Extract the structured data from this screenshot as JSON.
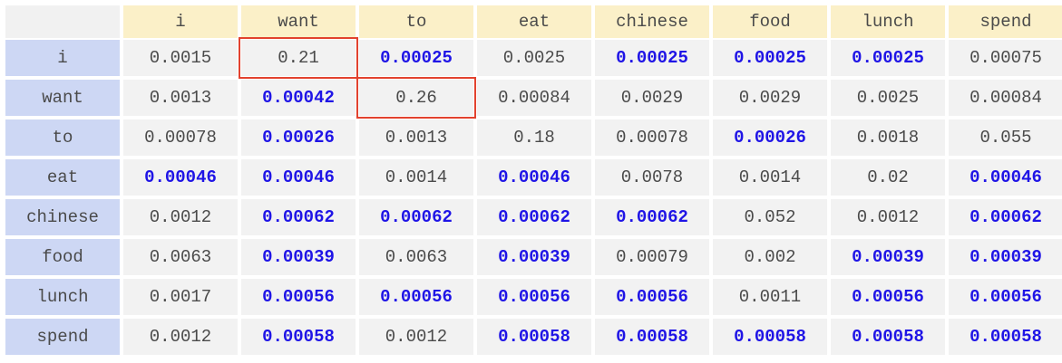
{
  "columns": [
    "i",
    "want",
    "to",
    "eat",
    "chinese",
    "food",
    "lunch",
    "spend"
  ],
  "rows": [
    {
      "label": "i",
      "cells": [
        {
          "v": "0.0015",
          "hl": false
        },
        {
          "v": "0.21",
          "hl": false
        },
        {
          "v": "0.00025",
          "hl": true
        },
        {
          "v": "0.0025",
          "hl": false
        },
        {
          "v": "0.00025",
          "hl": true
        },
        {
          "v": "0.00025",
          "hl": true
        },
        {
          "v": "0.00025",
          "hl": true
        },
        {
          "v": "0.00075",
          "hl": false
        }
      ]
    },
    {
      "label": "want",
      "cells": [
        {
          "v": "0.0013",
          "hl": false
        },
        {
          "v": "0.00042",
          "hl": true
        },
        {
          "v": "0.26",
          "hl": false
        },
        {
          "v": "0.00084",
          "hl": false
        },
        {
          "v": "0.0029",
          "hl": false
        },
        {
          "v": "0.0029",
          "hl": false
        },
        {
          "v": "0.0025",
          "hl": false
        },
        {
          "v": "0.00084",
          "hl": false
        }
      ]
    },
    {
      "label": "to",
      "cells": [
        {
          "v": "0.00078",
          "hl": false
        },
        {
          "v": "0.00026",
          "hl": true
        },
        {
          "v": "0.0013",
          "hl": false
        },
        {
          "v": "0.18",
          "hl": false
        },
        {
          "v": "0.00078",
          "hl": false
        },
        {
          "v": "0.00026",
          "hl": true
        },
        {
          "v": "0.0018",
          "hl": false
        },
        {
          "v": "0.055",
          "hl": false
        }
      ]
    },
    {
      "label": "eat",
      "cells": [
        {
          "v": "0.00046",
          "hl": true
        },
        {
          "v": "0.00046",
          "hl": true
        },
        {
          "v": "0.0014",
          "hl": false
        },
        {
          "v": "0.00046",
          "hl": true
        },
        {
          "v": "0.0078",
          "hl": false
        },
        {
          "v": "0.0014",
          "hl": false
        },
        {
          "v": "0.02",
          "hl": false
        },
        {
          "v": "0.00046",
          "hl": true
        }
      ]
    },
    {
      "label": "chinese",
      "cells": [
        {
          "v": "0.0012",
          "hl": false
        },
        {
          "v": "0.00062",
          "hl": true
        },
        {
          "v": "0.00062",
          "hl": true
        },
        {
          "v": "0.00062",
          "hl": true
        },
        {
          "v": "0.00062",
          "hl": true
        },
        {
          "v": "0.052",
          "hl": false
        },
        {
          "v": "0.0012",
          "hl": false
        },
        {
          "v": "0.00062",
          "hl": true
        }
      ]
    },
    {
      "label": "food",
      "cells": [
        {
          "v": "0.0063",
          "hl": false
        },
        {
          "v": "0.00039",
          "hl": true
        },
        {
          "v": "0.0063",
          "hl": false
        },
        {
          "v": "0.00039",
          "hl": true
        },
        {
          "v": "0.00079",
          "hl": false
        },
        {
          "v": "0.002",
          "hl": false
        },
        {
          "v": "0.00039",
          "hl": true
        },
        {
          "v": "0.00039",
          "hl": true
        }
      ]
    },
    {
      "label": "lunch",
      "cells": [
        {
          "v": "0.0017",
          "hl": false
        },
        {
          "v": "0.00056",
          "hl": true
        },
        {
          "v": "0.00056",
          "hl": true
        },
        {
          "v": "0.00056",
          "hl": true
        },
        {
          "v": "0.00056",
          "hl": true
        },
        {
          "v": "0.0011",
          "hl": false
        },
        {
          "v": "0.00056",
          "hl": true
        },
        {
          "v": "0.00056",
          "hl": true
        }
      ]
    },
    {
      "label": "spend",
      "cells": [
        {
          "v": "0.0012",
          "hl": false
        },
        {
          "v": "0.00058",
          "hl": true
        },
        {
          "v": "0.0012",
          "hl": false
        },
        {
          "v": "0.00058",
          "hl": true
        },
        {
          "v": "0.00058",
          "hl": true
        },
        {
          "v": "0.00058",
          "hl": true
        },
        {
          "v": "0.00058",
          "hl": true
        },
        {
          "v": "0.00058",
          "hl": true
        }
      ]
    }
  ],
  "outlined_cells": [
    {
      "row": "i",
      "column": "want"
    },
    {
      "row": "want",
      "column": "to"
    }
  ],
  "colors": {
    "header_col_bg": "#fbf0c8",
    "header_row_bg": "#cdd7f4",
    "cell_bg": "#f2f2f2",
    "highlight_text": "#1f14e6",
    "normal_text": "#4a4a4a",
    "outline": "#e2422e"
  }
}
